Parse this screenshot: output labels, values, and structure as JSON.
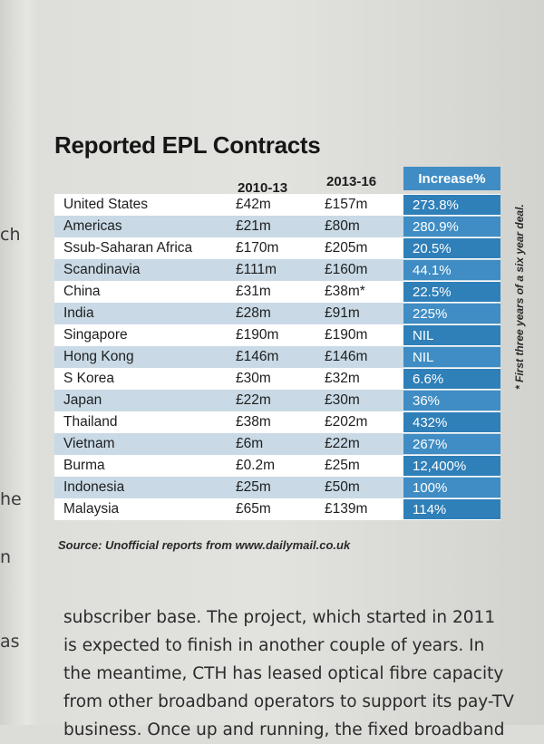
{
  "table": {
    "title": "Reported EPL Contracts",
    "headers": {
      "col_a": "2010-13",
      "col_b": "2013-16",
      "increase": "Increase%"
    },
    "rows": [
      {
        "country": "United States",
        "a": "£42m",
        "b": "£157m",
        "inc": "273.8%"
      },
      {
        "country": "Americas",
        "a": "£21m",
        "b": "£80m",
        "inc": "280.9%"
      },
      {
        "country": "Ssub-Saharan Africa",
        "a": "£170m",
        "b": "£205m",
        "inc": "20.5%"
      },
      {
        "country": "Scandinavia",
        "a": "£111m",
        "b": "£160m",
        "inc": "44.1%"
      },
      {
        "country": "China",
        "a": "£31m",
        "b": "£38m*",
        "inc": "22.5%"
      },
      {
        "country": "India",
        "a": "£28m",
        "b": "£91m",
        "inc": "225%"
      },
      {
        "country": "Singapore",
        "a": "£190m",
        "b": "£190m",
        "inc": "NIL"
      },
      {
        "country": "Hong Kong",
        "a": "£146m",
        "b": "£146m",
        "inc": "NIL"
      },
      {
        "country": "S Korea",
        "a": "£30m",
        "b": "£32m",
        "inc": "6.6%"
      },
      {
        "country": "Japan",
        "a": "£22m",
        "b": "£30m",
        "inc": "36%"
      },
      {
        "country": "Thailand",
        "a": "£38m",
        "b": "£202m",
        "inc": "432%"
      },
      {
        "country": "Vietnam",
        "a": "£6m",
        "b": "£22m",
        "inc": "267%"
      },
      {
        "country": "Burma",
        "a": "£0.2m",
        "b": "£25m",
        "inc": "12,400%"
      },
      {
        "country": "Indonesia",
        "a": "£25m",
        "b": "£50m",
        "inc": "100%"
      },
      {
        "country": "Malaysia",
        "a": "£65m",
        "b": "£139m",
        "inc": "114%"
      }
    ],
    "source": "Source: Unofficial reports from www.dailymail.co.uk",
    "footnote": "* First three years of a six year deal."
  },
  "margin_fragments": [
    "ch",
    "he",
    "n",
    "as"
  ],
  "body_lines": [
    "subscriber base. The project, which started in 2011",
    "is expected to finish in another couple of years. In",
    "the meantime, CTH has leased optical fibre capacity",
    "from other broadband operators to support its pay-TV",
    "business. Once up and running, the fixed broadband"
  ],
  "colors": {
    "increase_dark": "#2f7fb8",
    "increase_light": "#3f8dc4",
    "row_stripe": "#c9dae6"
  }
}
